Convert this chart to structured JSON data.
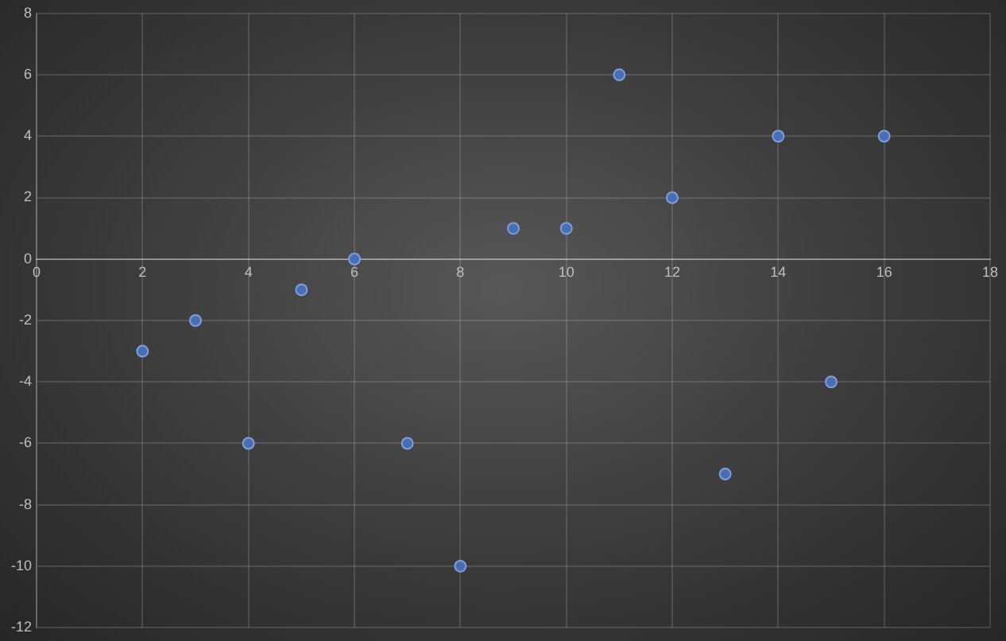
{
  "chart_data": {
    "type": "scatter",
    "x": [
      2,
      3,
      4,
      5,
      6,
      7,
      8,
      9,
      10,
      11,
      12,
      13,
      14,
      15,
      16
    ],
    "values": [
      -3,
      -2,
      -6,
      -1,
      0,
      -6,
      -10,
      1,
      1,
      6,
      2,
      -7,
      4,
      -4,
      4
    ],
    "color": "#4a6eb4",
    "marker": "circle",
    "grid": true,
    "xlim": [
      0,
      18
    ],
    "xticks": [
      0,
      2,
      4,
      6,
      8,
      10,
      12,
      14,
      16,
      18
    ],
    "ylim": [
      -12,
      8
    ],
    "yticks": [
      -12,
      -10,
      -8,
      -6,
      -4,
      -2,
      0,
      2,
      4,
      6,
      8
    ]
  }
}
